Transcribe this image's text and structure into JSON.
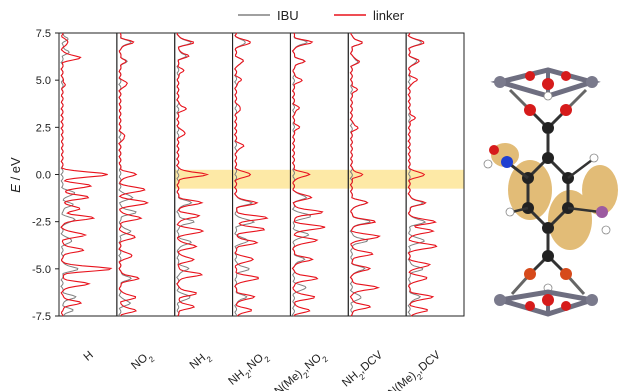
{
  "chart_data": {
    "type": "line",
    "ylabel": "E / eV",
    "ylim": [
      -7.5,
      7.5
    ],
    "yticks": [
      "7.5",
      "5.0",
      "2.5",
      "0.0",
      "-2.5",
      "-5.0",
      "-7.5"
    ],
    "ytick_values": [
      7.5,
      5.0,
      2.5,
      0.0,
      -2.5,
      -5.0,
      -7.5
    ],
    "highlight_band": {
      "ymin": -0.75,
      "ymax": 0.25,
      "color": "#fde9a6"
    },
    "legend": {
      "placement": "top-center",
      "items": [
        {
          "label": "IBU",
          "color": "#808080"
        },
        {
          "label": "linker",
          "color": "#e8121c"
        }
      ]
    },
    "panels": [
      {
        "label": "H",
        "sub": "",
        "series": {
          "linker": [
            [
              7.0,
              0.12
            ],
            [
              6.2,
              0.35
            ],
            [
              4.8,
              0.05
            ],
            [
              0.0,
              0.9
            ],
            [
              -0.6,
              0.55
            ],
            [
              -1.2,
              0.5
            ],
            [
              -1.8,
              0.35
            ],
            [
              -2.3,
              0.6
            ],
            [
              -3.2,
              0.45
            ],
            [
              -4.0,
              0.4
            ],
            [
              -5.0,
              0.95
            ],
            [
              -5.8,
              0.5
            ],
            [
              -6.8,
              0.35
            ]
          ],
          "IBU": [
            [
              7.2,
              0.1
            ],
            [
              6.5,
              0.12
            ],
            [
              -1.0,
              0.25
            ],
            [
              -1.6,
              0.2
            ],
            [
              -2.4,
              0.25
            ],
            [
              -3.5,
              0.2
            ],
            [
              -5.0,
              0.3
            ],
            [
              -6.5,
              0.25
            ],
            [
              -7.2,
              0.2
            ]
          ]
        }
      },
      {
        "label": "NO",
        "sub": "2",
        "series": {
          "linker": [
            [
              7.0,
              0.25
            ],
            [
              6.0,
              0.1
            ],
            [
              4.8,
              0.15
            ],
            [
              2.0,
              0.1
            ],
            [
              0.0,
              0.3
            ],
            [
              -0.8,
              0.5
            ],
            [
              -1.5,
              0.55
            ],
            [
              -2.3,
              0.4
            ],
            [
              -3.3,
              0.3
            ],
            [
              -4.3,
              0.25
            ],
            [
              -5.5,
              0.35
            ],
            [
              -6.5,
              0.3
            ],
            [
              -7.2,
              0.3
            ]
          ],
          "IBU": [
            [
              7.0,
              0.2
            ],
            [
              6.0,
              0.12
            ],
            [
              -1.2,
              0.25
            ],
            [
              -2.0,
              0.3
            ],
            [
              -3.0,
              0.2
            ],
            [
              -5.5,
              0.2
            ],
            [
              -6.8,
              0.2
            ]
          ]
        }
      },
      {
        "label": "NH",
        "sub": "2",
        "series": {
          "linker": [
            [
              7.0,
              0.3
            ],
            [
              6.3,
              0.2
            ],
            [
              5.5,
              0.1
            ],
            [
              3.5,
              0.15
            ],
            [
              2.2,
              0.15
            ],
            [
              0.0,
              0.55
            ],
            [
              -1.5,
              0.45
            ],
            [
              -2.2,
              0.4
            ],
            [
              -3.0,
              0.5
            ],
            [
              -3.8,
              0.35
            ],
            [
              -4.5,
              0.3
            ],
            [
              -5.3,
              0.45
            ],
            [
              -6.3,
              0.35
            ],
            [
              -7.0,
              0.3
            ]
          ],
          "IBU": [
            [
              7.0,
              0.25
            ],
            [
              6.3,
              0.15
            ],
            [
              -1.5,
              0.25
            ],
            [
              -2.5,
              0.3
            ],
            [
              -3.6,
              0.25
            ],
            [
              -5.0,
              0.2
            ],
            [
              -6.5,
              0.25
            ]
          ]
        }
      },
      {
        "label": "NH",
        "sub": "2",
        "suffix": ",NO",
        "sub2": "2",
        "series": {
          "linker": [
            [
              7.0,
              0.3
            ],
            [
              6.0,
              0.15
            ],
            [
              5.0,
              0.1
            ],
            [
              3.5,
              0.1
            ],
            [
              1.5,
              0.15
            ],
            [
              0.0,
              0.3
            ],
            [
              -1.5,
              0.4
            ],
            [
              -2.3,
              0.6
            ],
            [
              -2.9,
              0.55
            ],
            [
              -3.6,
              0.4
            ],
            [
              -4.5,
              0.35
            ],
            [
              -5.5,
              0.45
            ],
            [
              -6.5,
              0.35
            ],
            [
              -7.2,
              0.3
            ]
          ],
          "IBU": [
            [
              7.0,
              0.2
            ],
            [
              6.0,
              0.15
            ],
            [
              -1.5,
              0.3
            ],
            [
              -2.5,
              0.35
            ],
            [
              -3.5,
              0.25
            ],
            [
              -5.0,
              0.25
            ],
            [
              -6.5,
              0.2
            ]
          ]
        }
      },
      {
        "label": "N(Me)",
        "sub": "2",
        "suffix": ",NO",
        "sub2": "2",
        "series": {
          "linker": [
            [
              7.0,
              0.35
            ],
            [
              6.0,
              0.2
            ],
            [
              5.0,
              0.15
            ],
            [
              3.5,
              0.1
            ],
            [
              2.5,
              0.1
            ],
            [
              0.0,
              0.3
            ],
            [
              -1.2,
              0.35
            ],
            [
              -2.0,
              0.55
            ],
            [
              -2.8,
              0.6
            ],
            [
              -3.5,
              0.45
            ],
            [
              -4.5,
              0.35
            ],
            [
              -5.5,
              0.45
            ],
            [
              -6.5,
              0.4
            ],
            [
              -7.2,
              0.3
            ]
          ],
          "IBU": [
            [
              7.0,
              0.25
            ],
            [
              6.0,
              0.2
            ],
            [
              -1.2,
              0.25
            ],
            [
              -2.2,
              0.35
            ],
            [
              -3.2,
              0.3
            ],
            [
              -4.5,
              0.2
            ],
            [
              -6.0,
              0.25
            ]
          ]
        }
      },
      {
        "label": "NH",
        "sub": "2",
        "suffix": ",DCV",
        "series": {
          "linker": [
            [
              7.0,
              0.2
            ],
            [
              6.0,
              0.15
            ],
            [
              4.5,
              0.1
            ],
            [
              2.5,
              0.12
            ],
            [
              0.0,
              0.2
            ],
            [
              -1.5,
              0.3
            ],
            [
              -2.5,
              0.45
            ],
            [
              -3.3,
              0.55
            ],
            [
              -4.2,
              0.4
            ],
            [
              -5.0,
              0.35
            ],
            [
              -6.0,
              0.5
            ],
            [
              -7.0,
              0.35
            ]
          ],
          "IBU": [
            [
              7.0,
              0.2
            ],
            [
              6.0,
              0.12
            ],
            [
              -1.5,
              0.3
            ],
            [
              -2.5,
              0.35
            ],
            [
              -3.5,
              0.3
            ],
            [
              -5.0,
              0.25
            ],
            [
              -6.5,
              0.2
            ]
          ]
        }
      },
      {
        "label": "N(Me)",
        "sub": "2",
        "suffix": ",DCV",
        "series": {
          "linker": [
            [
              7.0,
              0.3
            ],
            [
              6.0,
              0.2
            ],
            [
              5.0,
              0.15
            ],
            [
              3.0,
              0.1
            ],
            [
              0.0,
              0.3
            ],
            [
              -1.5,
              0.3
            ],
            [
              -2.5,
              0.5
            ],
            [
              -3.0,
              0.45
            ],
            [
              -3.8,
              0.55
            ],
            [
              -4.8,
              0.4
            ],
            [
              -5.5,
              0.35
            ],
            [
              -6.5,
              0.45
            ],
            [
              -7.2,
              0.35
            ]
          ],
          "IBU": [
            [
              7.0,
              0.25
            ],
            [
              6.0,
              0.15
            ],
            [
              -1.5,
              0.25
            ],
            [
              -2.5,
              0.3
            ],
            [
              -3.5,
              0.3
            ],
            [
              -5.0,
              0.25
            ],
            [
              -6.5,
              0.2
            ]
          ]
        }
      }
    ]
  },
  "structure_image": {
    "description_icon": "molecule-structure-icon"
  }
}
